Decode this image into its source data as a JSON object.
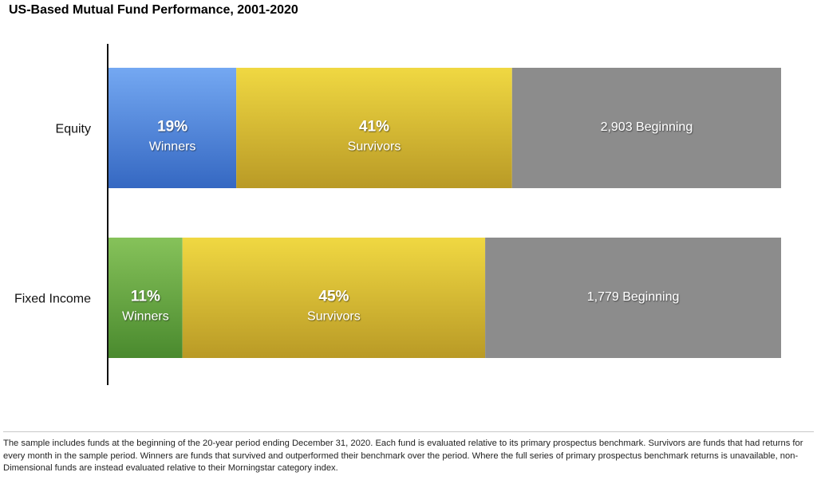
{
  "chart_data": {
    "type": "bar",
    "orientation": "horizontal",
    "stacked": true,
    "title": "US-Based Mutual Fund Performance, 2001-2020",
    "categories": [
      "Equity",
      "Fixed Income"
    ],
    "scale_max": 100,
    "series": [
      {
        "name": "Winners",
        "values": [
          19,
          11
        ],
        "labels": [
          "19%",
          "11%"
        ],
        "sublabel": "Winners",
        "colors": [
          "#4f86d6",
          "#5f9d3e"
        ]
      },
      {
        "name": "Survivors",
        "values": [
          41,
          45
        ],
        "labels": [
          "41%",
          "45%"
        ],
        "sublabel": "Survivors",
        "color": "#d4b42c"
      },
      {
        "name": "Beginning",
        "counts": [
          2903,
          1779
        ],
        "labels": [
          "2,903 Beginning",
          "1,779 Beginning"
        ],
        "color": "#8c8c8c"
      }
    ],
    "grid": false,
    "legend": "none"
  },
  "footnote": "The sample includes funds at the beginning of the 20-year period ending December 31, 2020. Each fund is evaluated relative to its primary prospectus benchmark. Survivors are funds that had returns for every month in the sample period. Winners are funds that survived and outperformed their benchmark over the period. Where the full series of primary prospectus benchmark returns is unavailable, non-Dimensional funds are instead evaluated relative to their Morningstar category index."
}
